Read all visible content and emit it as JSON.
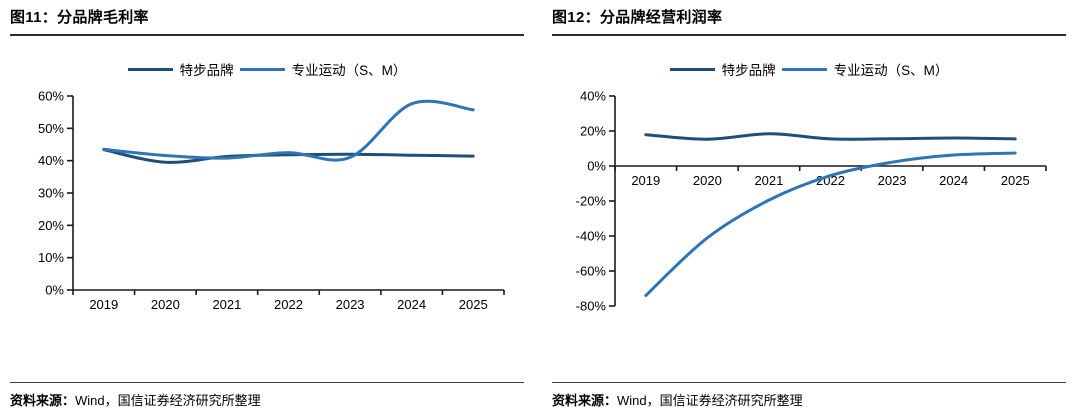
{
  "source_note": {
    "prefix": "资料来源：",
    "text": "Wind，国信证券经济研究所整理"
  },
  "colors": {
    "xtep_brand": "#1f4e79",
    "pro_sports": "#2e75b6",
    "axis": "#1a1a1a",
    "title_rule": "#2b2b2b"
  },
  "charts": [
    {
      "title": "图11：分品牌毛利率",
      "chart_data": {
        "type": "line",
        "categories": [
          "2019",
          "2020",
          "2021",
          "2022",
          "2023",
          "2024",
          "2025"
        ],
        "series": [
          {
            "name": "特步品牌",
            "color": "#1f4e79",
            "values": [
              43.4,
              39.5,
              41.3,
              41.8,
              42.0,
              41.7,
              41.4
            ]
          },
          {
            "name": "专业运动（S、M）",
            "color": "#2e75b6",
            "values": [
              43.5,
              41.6,
              40.8,
              42.5,
              41.0,
              57.6,
              55.7
            ]
          }
        ],
        "title": "分品牌毛利率",
        "xlabel": "",
        "ylabel": "",
        "ylim": [
          0,
          60
        ],
        "ytick_step": 10,
        "y_tick_labels": [
          "60%",
          "50%",
          "40%",
          "30%",
          "20%",
          "10%",
          "0%"
        ],
        "y_format": "percent",
        "grid": false,
        "legend_position": "top"
      }
    },
    {
      "title": "图12：分品牌经营利润率",
      "chart_data": {
        "type": "line",
        "categories": [
          "2019",
          "2020",
          "2021",
          "2022",
          "2023",
          "2024",
          "2025"
        ],
        "series": [
          {
            "name": "特步品牌",
            "color": "#1f4e79",
            "values": [
              17.9,
              15.3,
              18.4,
              15.5,
              15.6,
              16.0,
              15.5
            ]
          },
          {
            "name": "专业运动（S、M）",
            "color": "#2e75b6",
            "values": [
              -74,
              -41,
              -19.5,
              -5.5,
              2.2,
              6.3,
              7.4
            ]
          }
        ],
        "title": "分品牌经营利润率",
        "xlabel": "",
        "ylabel": "",
        "ylim": [
          -80,
          40
        ],
        "ytick_step": 20,
        "y_tick_labels": [
          "40%",
          "20%",
          "0%",
          "-20%",
          "-40%",
          "-60%",
          "-80%"
        ],
        "y_format": "percent",
        "grid": false,
        "legend_position": "top"
      }
    }
  ]
}
